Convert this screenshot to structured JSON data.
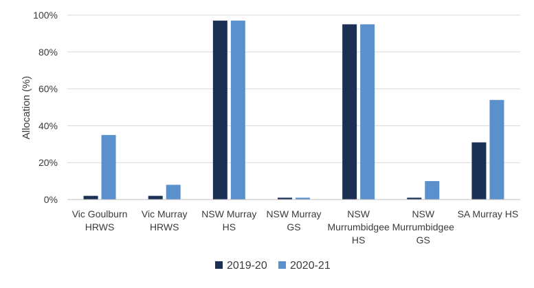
{
  "chart_data": {
    "type": "bar",
    "ylabel": "Allocation (%)",
    "ylim": [
      0,
      100
    ],
    "yticks": [
      "0%",
      "20%",
      "40%",
      "60%",
      "80%",
      "100%"
    ],
    "grid": true,
    "legend_position": "bottom",
    "categories": [
      [
        "Vic Goulburn",
        "HRWS"
      ],
      [
        "Vic Murray",
        "HRWS"
      ],
      [
        "NSW Murray",
        "HS"
      ],
      [
        "NSW Murray",
        "GS"
      ],
      [
        "NSW",
        "Murrumbidgee",
        "HS"
      ],
      [
        "NSW",
        "Murrumbidgee",
        "GS"
      ],
      [
        "SA Murray HS"
      ]
    ],
    "series": [
      {
        "name": "2019-20",
        "color": "#1c2f55",
        "values": [
          2,
          2,
          97,
          1,
          95,
          1,
          31
        ]
      },
      {
        "name": "2020-21",
        "color": "#5b90cc",
        "values": [
          35,
          8,
          97,
          1,
          95,
          10,
          54
        ]
      }
    ]
  }
}
